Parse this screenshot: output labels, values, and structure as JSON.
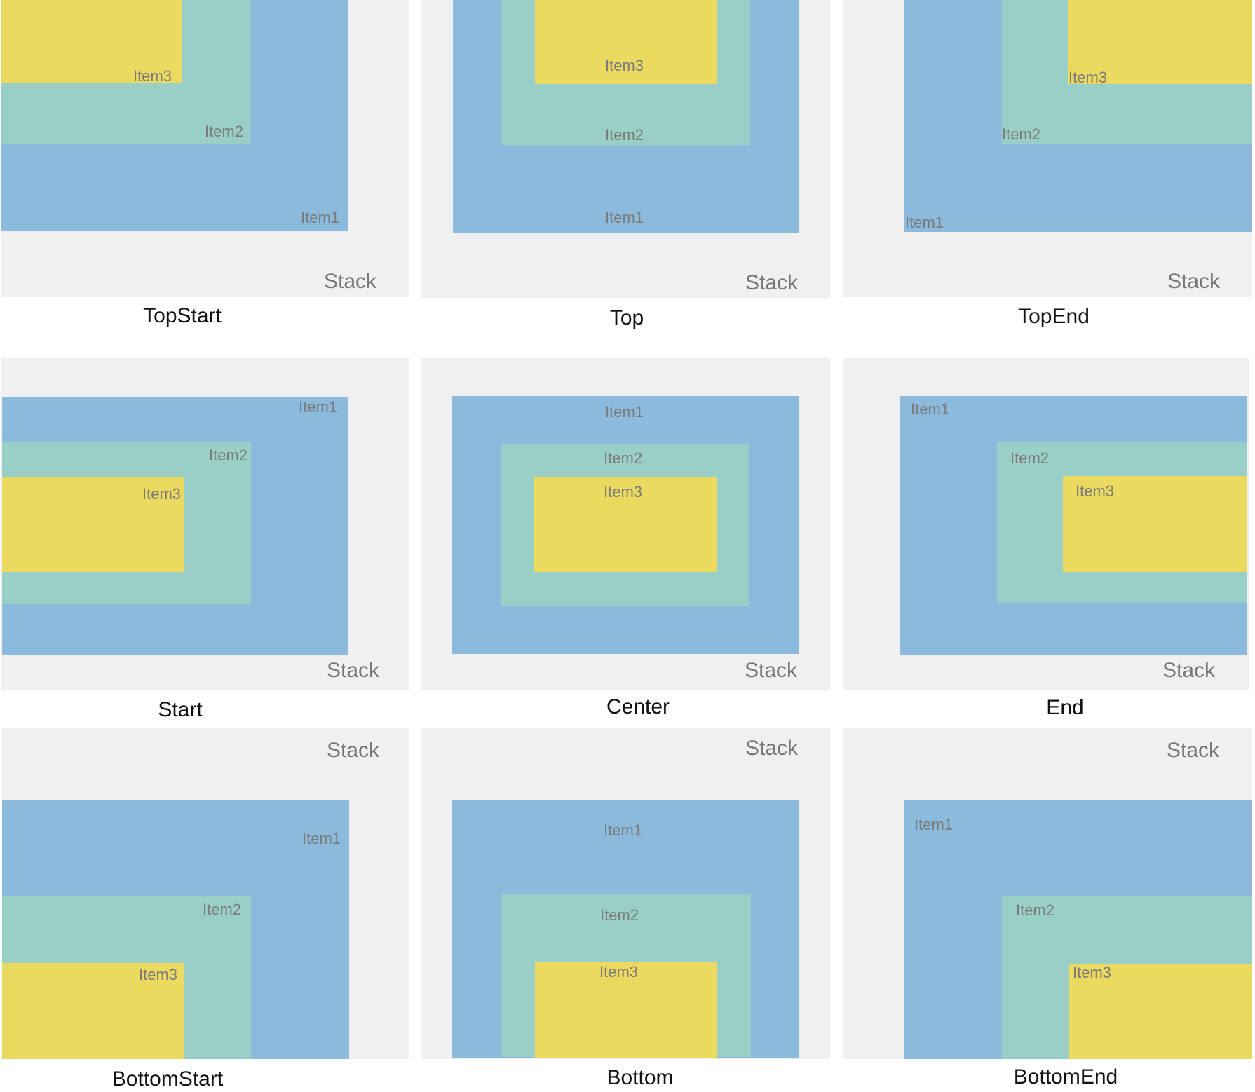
{
  "stack_label": "Stack",
  "item_labels": {
    "item1": "Item1",
    "item2": "Item2",
    "item3": "Item3"
  },
  "colors": {
    "stack_background": "#f0f0f0",
    "item1": "#8bbadd",
    "item2": "#99cfc6",
    "item3": "#ebd960"
  },
  "panels": [
    {
      "id": "topstart",
      "caption": "TopStart"
    },
    {
      "id": "top",
      "caption": "Top"
    },
    {
      "id": "topend",
      "caption": "TopEnd"
    },
    {
      "id": "start",
      "caption": "Start"
    },
    {
      "id": "center",
      "caption": "Center"
    },
    {
      "id": "end",
      "caption": "End"
    },
    {
      "id": "bottomstart",
      "caption": "BottomStart"
    },
    {
      "id": "bottom",
      "caption": "Bottom"
    },
    {
      "id": "bottomend",
      "caption": "BottomEnd"
    }
  ]
}
